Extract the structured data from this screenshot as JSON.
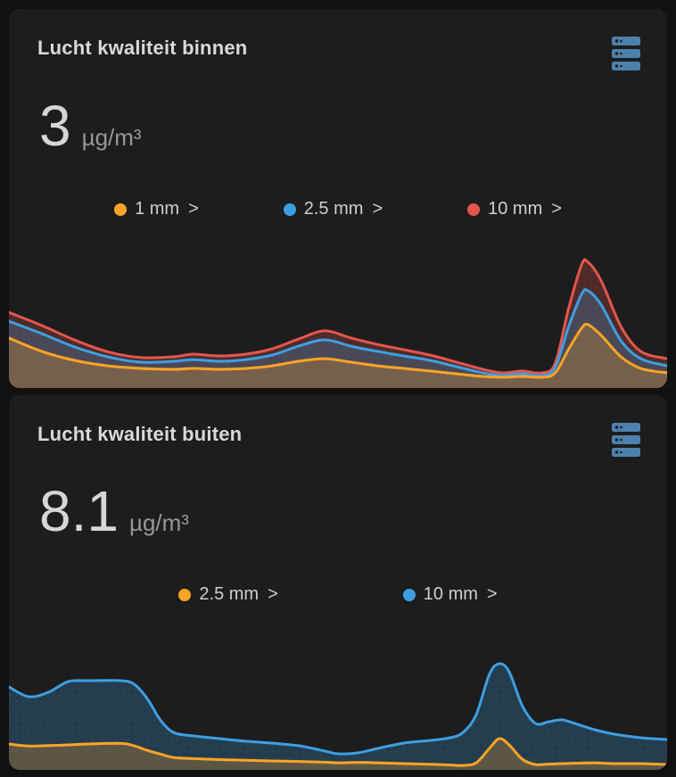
{
  "page": {
    "background": "#111111",
    "card_background": "#1d1d1d"
  },
  "colors": {
    "orange": "#ffa426",
    "blue": "#3d9fe3",
    "red": "#e4564d",
    "icon_blue": "#4d81ad"
  },
  "cards": [
    {
      "title": "Lucht kwaliteit binnen",
      "icon": "server-icon",
      "icon_color": "#4d81ad",
      "value": "3",
      "unit": "µg/m³",
      "legend": [
        {
          "label": "1 mm",
          "chevron": ">",
          "color": "#ffa426"
        },
        {
          "label": "2.5 mm",
          "chevron": ">",
          "color": "#3d9fe3"
        },
        {
          "label": "10 mm",
          "chevron": ">",
          "color": "#e4564d"
        }
      ]
    },
    {
      "title": "Lucht kwaliteit buiten",
      "icon": "server-icon",
      "icon_color": "#4d81ad",
      "value": "8.1",
      "unit": "µg/m³",
      "legend": [
        {
          "label": "2.5 mm",
          "chevron": ">",
          "color": "#ffa426"
        },
        {
          "label": "10 mm",
          "chevron": ">",
          "color": "#3d9fe3"
        }
      ]
    }
  ],
  "chart_data": [
    {
      "type": "area",
      "title": "Lucht kwaliteit binnen",
      "current_value": 3,
      "unit": "µg/m³",
      "grid": false,
      "legend_position": "top",
      "x_range": [
        0,
        1
      ],
      "y_range": [
        0,
        1
      ],
      "note": "y values are fraction of chart height (no axis labels visible)",
      "x": [
        0,
        0.05,
        0.1,
        0.15,
        0.2,
        0.25,
        0.28,
        0.32,
        0.36,
        0.4,
        0.44,
        0.48,
        0.52,
        0.56,
        0.6,
        0.64,
        0.68,
        0.72,
        0.75,
        0.78,
        0.81,
        0.83,
        0.85,
        0.87,
        0.88,
        0.9,
        0.93,
        0.96,
        1.0
      ],
      "series": [
        {
          "name": "10 mm",
          "color": "#e4564d",
          "y": [
            0.52,
            0.43,
            0.33,
            0.25,
            0.21,
            0.215,
            0.233,
            0.221,
            0.233,
            0.27,
            0.337,
            0.393,
            0.344,
            0.3,
            0.264,
            0.227,
            0.178,
            0.129,
            0.104,
            0.117,
            0.104,
            0.17,
            0.54,
            0.847,
            0.865,
            0.736,
            0.423,
            0.252,
            0.202
          ]
        },
        {
          "name": "2.5 mm",
          "color": "#3d9fe3",
          "y": [
            0.46,
            0.374,
            0.282,
            0.215,
            0.178,
            0.184,
            0.196,
            0.184,
            0.196,
            0.227,
            0.288,
            0.331,
            0.288,
            0.252,
            0.221,
            0.19,
            0.147,
            0.104,
            0.086,
            0.098,
            0.086,
            0.141,
            0.417,
            0.644,
            0.669,
            0.571,
            0.325,
            0.202,
            0.153
          ]
        },
        {
          "name": "1 mm",
          "color": "#ffa426",
          "y": [
            0.344,
            0.252,
            0.19,
            0.153,
            0.135,
            0.129,
            0.135,
            0.129,
            0.135,
            0.153,
            0.184,
            0.202,
            0.178,
            0.153,
            0.135,
            0.117,
            0.098,
            0.08,
            0.074,
            0.08,
            0.074,
            0.104,
            0.264,
            0.411,
            0.436,
            0.362,
            0.215,
            0.135,
            0.104
          ]
        }
      ]
    },
    {
      "type": "area",
      "title": "Lucht kwaliteit buiten",
      "current_value": 8.1,
      "unit": "µg/m³",
      "grid": false,
      "legend_position": "top",
      "x_range": [
        0,
        1
      ],
      "y_range": [
        0,
        1
      ],
      "note": "y values are fraction of chart height (no axis labels visible)",
      "x": [
        0,
        0.03,
        0.06,
        0.09,
        0.12,
        0.17,
        0.19,
        0.21,
        0.23,
        0.25,
        0.28,
        0.32,
        0.36,
        0.4,
        0.44,
        0.48,
        0.5,
        0.53,
        0.56,
        0.6,
        0.64,
        0.67,
        0.69,
        0.71,
        0.73,
        0.745,
        0.76,
        0.78,
        0.8,
        0.82,
        0.84,
        0.86,
        0.89,
        0.92,
        0.96,
        1.0
      ],
      "series": [
        {
          "name": "10 mm",
          "color": "#3d9fe3",
          "y": [
            0.574,
            0.506,
            0.537,
            0.611,
            0.617,
            0.617,
            0.593,
            0.494,
            0.346,
            0.259,
            0.235,
            0.216,
            0.198,
            0.185,
            0.167,
            0.13,
            0.111,
            0.117,
            0.148,
            0.185,
            0.204,
            0.222,
            0.259,
            0.383,
            0.66,
            0.734,
            0.679,
            0.444,
            0.321,
            0.333,
            0.346,
            0.321,
            0.278,
            0.247,
            0.222,
            0.21
          ]
        },
        {
          "name": "2.5 mm",
          "color": "#ffa426",
          "y": [
            0.179,
            0.165,
            0.168,
            0.173,
            0.179,
            0.183,
            0.167,
            0.135,
            0.11,
            0.086,
            0.078,
            0.071,
            0.066,
            0.062,
            0.058,
            0.053,
            0.049,
            0.052,
            0.049,
            0.043,
            0.038,
            0.034,
            0.031,
            0.049,
            0.148,
            0.216,
            0.173,
            0.074,
            0.037,
            0.04,
            0.043,
            0.046,
            0.049,
            0.043,
            0.043,
            0.037
          ]
        }
      ]
    }
  ]
}
